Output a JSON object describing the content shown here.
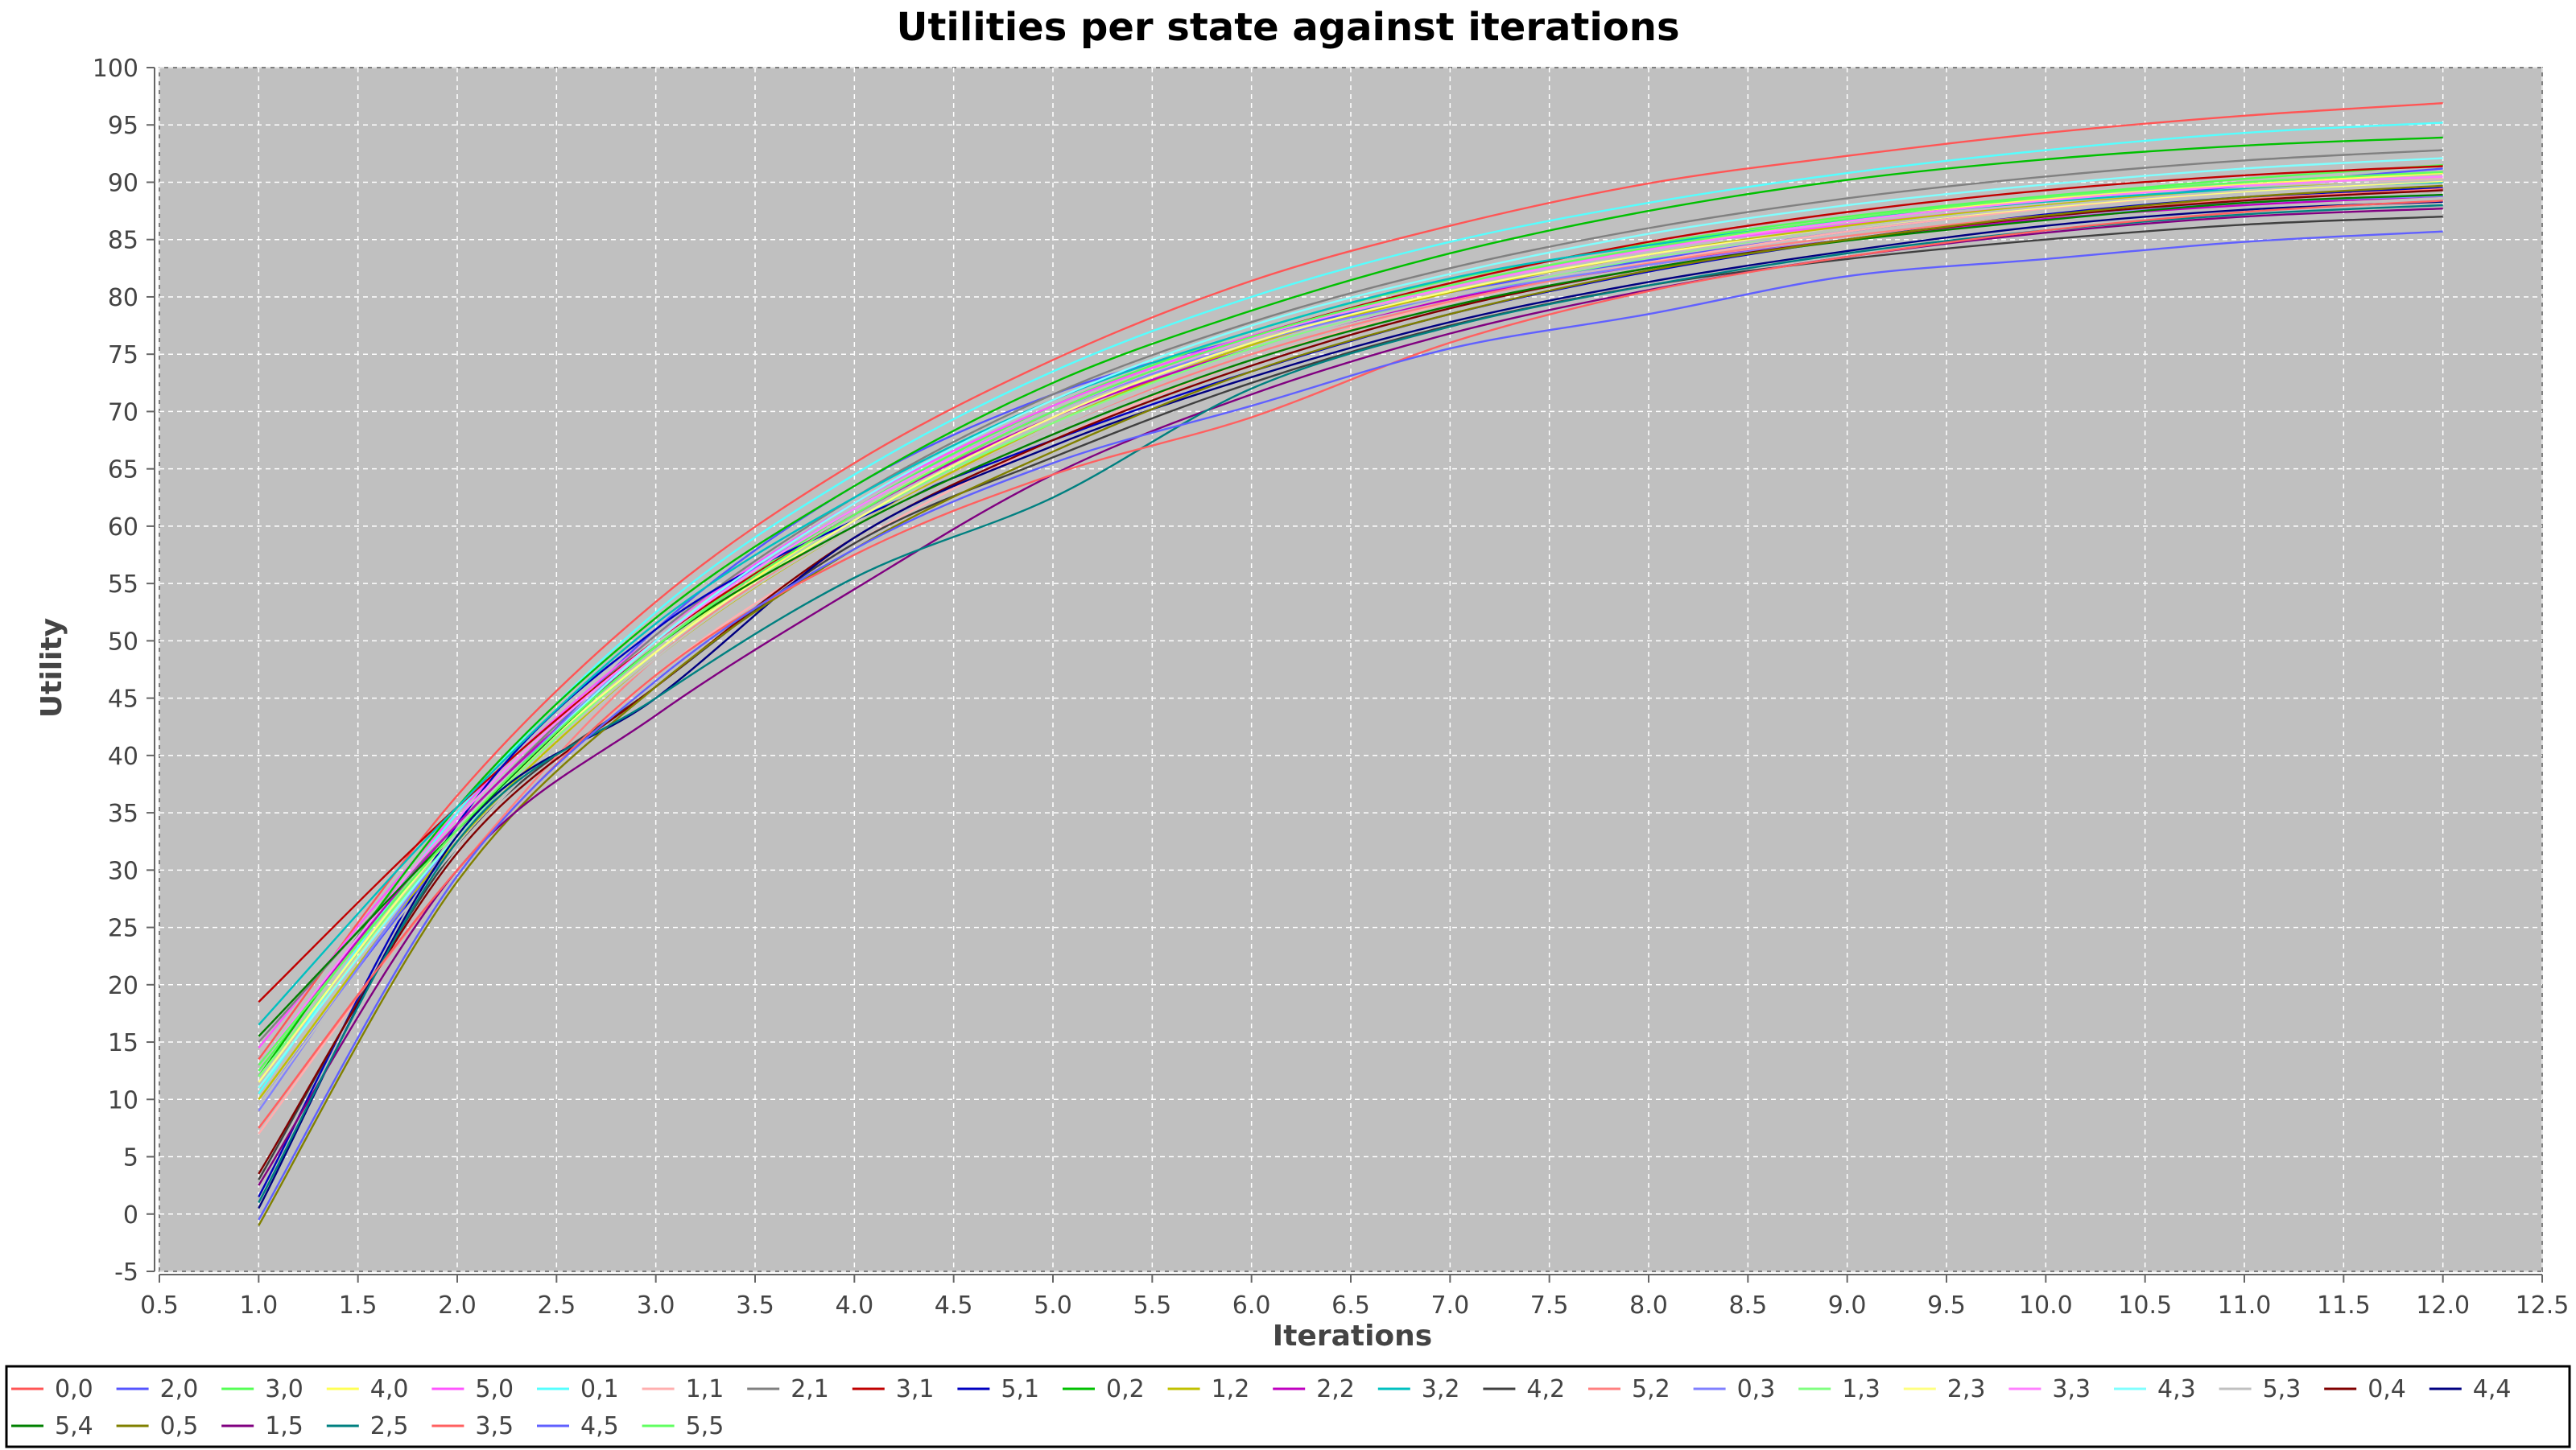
{
  "chart_data": {
    "type": "line",
    "title": "Utilities per state against iterations",
    "xlabel": "Iterations",
    "ylabel": "Utility",
    "xlim": [
      0.5,
      12.5
    ],
    "ylim": [
      -5,
      100
    ],
    "x_ticks": [
      "0.5",
      "1.0",
      "1.5",
      "2.0",
      "2.5",
      "3.0",
      "3.5",
      "4.0",
      "4.5",
      "5.0",
      "5.5",
      "6.0",
      "6.5",
      "7.0",
      "7.5",
      "8.0",
      "8.5",
      "9.0",
      "9.5",
      "10.0",
      "10.5",
      "11.0",
      "11.5",
      "12.0",
      "12.5"
    ],
    "y_ticks": [
      "-5",
      "0",
      "5",
      "10",
      "15",
      "20",
      "25",
      "30",
      "35",
      "40",
      "45",
      "50",
      "55",
      "60",
      "65",
      "70",
      "75",
      "80",
      "85",
      "90",
      "95",
      "100"
    ],
    "grid": true,
    "background": "#c0c0c0",
    "legend_position": "bottom",
    "x": [
      1,
      2,
      3,
      4,
      5,
      6,
      7,
      8,
      9,
      10,
      11,
      12
    ],
    "series": [
      {
        "name": "0,0",
        "color": "#ff5555",
        "values": [
          13.5,
          36.5,
          53.4,
          65.5,
          74.5,
          81.4,
          86.2,
          89.9,
          92.3,
          94.3,
          95.8,
          96.9
        ]
      },
      {
        "name": "2,0",
        "color": "#5555ff",
        "values": [
          9.5,
          32.5,
          51,
          63.5,
          71.5,
          76.5,
          80.4,
          83.2,
          85.7,
          87.8,
          89.7,
          91.2
        ]
      },
      {
        "name": "3,0",
        "color": "#55ff55",
        "values": [
          12.5,
          34,
          49.5,
          61.5,
          70.5,
          77,
          81.5,
          84.6,
          87,
          88.8,
          90.3,
          91.5
        ]
      },
      {
        "name": "4,0",
        "color": "#ffff55",
        "values": [
          11,
          33,
          49,
          61,
          70,
          76.5,
          81,
          84.3,
          86.7,
          88.5,
          89.8,
          90.8
        ]
      },
      {
        "name": "5,0",
        "color": "#ff55ff",
        "values": [
          14.5,
          35,
          50.5,
          62,
          70.5,
          76.6,
          81,
          84.2,
          86.3,
          88,
          89.3,
          90.1
        ]
      },
      {
        "name": "0,1",
        "color": "#55ffff",
        "values": [
          10.5,
          35,
          52.5,
          64.5,
          73.5,
          80,
          84.8,
          88.2,
          90.8,
          92.8,
          94.3,
          95.2
        ]
      },
      {
        "name": "1,1",
        "color": "#ffafaf",
        "values": [
          7,
          30,
          47,
          58.5,
          67.5,
          74.5,
          79.5,
          83,
          85.7,
          87.7,
          89.2,
          90.3
        ]
      },
      {
        "name": "2,1",
        "color": "#808080",
        "values": [
          15,
          34,
          50.5,
          62.5,
          71.5,
          77.8,
          82.5,
          86,
          88.6,
          90.5,
          91.9,
          92.8
        ]
      },
      {
        "name": "3,1",
        "color": "#c00000",
        "values": [
          18.5,
          35.5,
          50,
          61,
          70,
          76.5,
          81.2,
          84.8,
          87.4,
          89.3,
          90.6,
          91.4
        ]
      },
      {
        "name": "5,1",
        "color": "#0000c0",
        "values": [
          1.5,
          34,
          51,
          60.5,
          67.5,
          73.5,
          78.5,
          82.2,
          85,
          87.2,
          88.7,
          89.5
        ]
      },
      {
        "name": "0,2",
        "color": "#00c000",
        "values": [
          12,
          35.5,
          52,
          63.5,
          72.5,
          78.8,
          83.8,
          87.5,
          90.2,
          92,
          93.2,
          93.9
        ]
      },
      {
        "name": "1,2",
        "color": "#c0c000",
        "values": [
          10,
          32.5,
          48.5,
          60,
          69,
          75.8,
          80.4,
          83.7,
          86.2,
          88,
          89.4,
          90.1
        ]
      },
      {
        "name": "2,2",
        "color": "#c000c0",
        "values": [
          13,
          34,
          49.5,
          61,
          69.5,
          75.5,
          79.8,
          82.8,
          85,
          86.8,
          88,
          88.8
        ]
      },
      {
        "name": "3,2",
        "color": "#00c0c0",
        "values": [
          16.5,
          35.5,
          51.5,
          62.5,
          71,
          77,
          81.6,
          84.5,
          86.7,
          88.3,
          89.4,
          90
        ]
      },
      {
        "name": "4,2",
        "color": "#404040",
        "values": [
          3,
          32,
          46,
          58.5,
          66,
          72.5,
          77.5,
          81,
          83.3,
          85,
          86.3,
          87
        ]
      },
      {
        "name": "5,2",
        "color": "#ff8080",
        "values": [
          7.5,
          30,
          48.5,
          60,
          68.5,
          75,
          79.6,
          82.9,
          85.3,
          87.1,
          88.5,
          89.4
        ]
      },
      {
        "name": "0,3",
        "color": "#8080ff",
        "values": [
          9,
          33,
          50,
          61.5,
          70,
          76,
          80,
          82.8,
          85,
          87,
          88.2,
          88.8
        ]
      },
      {
        "name": "1,3",
        "color": "#80ff80",
        "values": [
          12,
          33,
          49,
          60.5,
          69,
          75.5,
          80,
          83.4,
          86,
          87.9,
          89.2,
          90.1
        ]
      },
      {
        "name": "2,3",
        "color": "#ffff80",
        "values": [
          11.5,
          33.5,
          49,
          60.5,
          69.5,
          76,
          80.5,
          83.7,
          86,
          87.8,
          89.2,
          90.1
        ]
      },
      {
        "name": "3,3",
        "color": "#ff80ff",
        "values": [
          13,
          34.5,
          50,
          61.5,
          70,
          76.4,
          80.8,
          84.1,
          86.6,
          88.4,
          89.7,
          90.5
        ]
      },
      {
        "name": "4,3",
        "color": "#80ffff",
        "values": [
          11,
          33,
          50,
          62,
          71,
          77.5,
          82,
          85.5,
          88,
          89.8,
          91.2,
          92.1
        ]
      },
      {
        "name": "5,3",
        "color": "#c0c0c0",
        "values": [
          9.5,
          32,
          48.5,
          60,
          68.5,
          75.3,
          80,
          83.5,
          86,
          87.9,
          89.3,
          90.2
        ]
      },
      {
        "name": "0,4",
        "color": "#800000",
        "values": [
          3.5,
          31.5,
          46,
          59,
          67.5,
          74,
          79,
          82.5,
          85,
          87,
          88.4,
          89.3
        ]
      },
      {
        "name": "4,4",
        "color": "#000080",
        "values": [
          0.5,
          33,
          45,
          59,
          67,
          73,
          77.8,
          81.3,
          84,
          86.2,
          87.6,
          88.3
        ]
      },
      {
        "name": "5,4",
        "color": "#008000",
        "values": [
          15.5,
          33.5,
          49.5,
          60,
          68,
          74.5,
          79.2,
          82.5,
          84.9,
          86.7,
          88.2,
          88.9
        ]
      },
      {
        "name": "0,5",
        "color": "#808000",
        "values": [
          -1,
          29,
          46,
          58,
          66.5,
          73.5,
          78.5,
          82.3,
          85,
          87.1,
          88.7,
          89.7
        ]
      },
      {
        "name": "1,5",
        "color": "#800080",
        "values": [
          2.5,
          30,
          43.5,
          54.5,
          64.5,
          71.5,
          76.8,
          80.6,
          83.5,
          85.6,
          87,
          87.7
        ]
      },
      {
        "name": "2,5",
        "color": "#008080",
        "values": [
          1,
          32.5,
          45,
          55.5,
          62.5,
          72,
          77.4,
          81,
          83.8,
          85.8,
          87.2,
          88
        ]
      },
      {
        "name": "3,5",
        "color": "#ff6060",
        "values": [
          7.5,
          30,
          47,
          57.5,
          64.5,
          69.5,
          76,
          80.5,
          83.5,
          85.8,
          87.4,
          88.4
        ]
      },
      {
        "name": "4,5",
        "color": "#6060ff",
        "values": [
          -0.5,
          29.5,
          46.5,
          58,
          65.5,
          70.5,
          75.5,
          78.5,
          81.8,
          83.3,
          84.8,
          85.7
        ]
      },
      {
        "name": "5,5",
        "color": "#60ff60",
        "values": [
          13,
          33.5,
          49.5,
          61,
          70,
          76.5,
          81,
          84.3,
          86.8,
          88.7,
          90,
          90.9
        ]
      }
    ]
  }
}
